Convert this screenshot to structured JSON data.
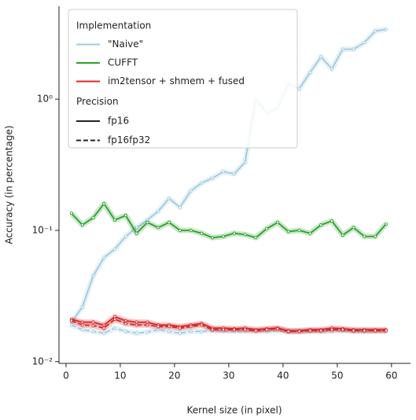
{
  "chart_data": {
    "type": "line",
    "xlabel": "Kernel size (in pixel)",
    "ylabel": "Accuracy (in percentage)",
    "x": [
      1,
      3,
      5,
      7,
      9,
      11,
      13,
      15,
      17,
      19,
      21,
      23,
      25,
      27,
      29,
      31,
      33,
      35,
      37,
      39,
      41,
      43,
      45,
      47,
      49,
      51,
      53,
      55,
      57,
      59
    ],
    "xlim": [
      -1.3,
      63.5
    ],
    "xticks": [
      0,
      10,
      20,
      30,
      40,
      50,
      60
    ],
    "ylim": [
      0.0097,
      5.1
    ],
    "yscale": "log",
    "yticks": [
      {
        "value": 0.01,
        "label": "10⁻²"
      },
      {
        "value": 0.1,
        "label": "10⁻¹"
      },
      {
        "value": 1,
        "label": "10⁰"
      }
    ],
    "legend": {
      "position": "upper left",
      "hue_title": "Implementation",
      "style_title": "Precision",
      "styles": [
        {
          "name": "fp16",
          "dash": "solid"
        },
        {
          "name": "fp16fp32",
          "dash": "dashed"
        }
      ]
    },
    "series": [
      {
        "name": "\"Naive\"",
        "color": "#9ecae1",
        "lines": [
          {
            "dash": "solid",
            "values": [
              0.02,
              0.026,
              0.045,
              0.062,
              0.072,
              0.09,
              0.105,
              0.12,
              0.14,
              0.175,
              0.15,
              0.2,
              0.23,
              0.25,
              0.28,
              0.27,
              0.33,
              1.0,
              0.78,
              0.85,
              1.3,
              1.2,
              1.6,
              2.1,
              1.7,
              2.4,
              2.4,
              2.7,
              3.3,
              3.4
            ]
          },
          {
            "dash": "dashed",
            "values": [
              0.019,
              0.0175,
              0.017,
              0.0165,
              0.018,
              0.017,
              0.0165,
              0.0168,
              0.0175,
              0.017,
              0.0165,
              0.017,
              0.017,
              0.0172,
              0.017,
              0.017,
              0.017,
              0.0172,
              0.017,
              0.0172,
              0.0168,
              0.017,
              0.017,
              0.017,
              0.017,
              0.0172,
              0.017,
              0.017,
              0.017,
              0.017
            ]
          }
        ]
      },
      {
        "name": "CUFFT",
        "color": "#2ca02c",
        "lines": [
          {
            "dash": "solid",
            "values": [
              0.135,
              0.11,
              0.125,
              0.16,
              0.12,
              0.13,
              0.095,
              0.115,
              0.105,
              0.115,
              0.1,
              0.1,
              0.095,
              0.088,
              0.09,
              0.095,
              0.093,
              0.088,
              0.103,
              0.115,
              0.098,
              0.1,
              0.095,
              0.11,
              0.118,
              0.092,
              0.105,
              0.09,
              0.09,
              0.112
            ]
          }
        ]
      },
      {
        "name": "im2tensor + shmem + fused",
        "color": "#d62728",
        "lines": [
          {
            "dash": "solid",
            "values": [
              0.021,
              0.02,
              0.02,
              0.019,
              0.022,
              0.0205,
              0.02,
              0.02,
              0.019,
              0.019,
              0.0185,
              0.019,
              0.0195,
              0.018,
              0.018,
              0.0178,
              0.018,
              0.0175,
              0.0178,
              0.018,
              0.0172,
              0.0172,
              0.0175,
              0.0175,
              0.018,
              0.0178,
              0.0175,
              0.0175,
              0.0175,
              0.0175
            ]
          },
          {
            "dash": "dashed",
            "values": [
              0.0205,
              0.019,
              0.0188,
              0.018,
              0.021,
              0.0195,
              0.019,
              0.019,
              0.0185,
              0.0185,
              0.018,
              0.0185,
              0.019,
              0.0175,
              0.0175,
              0.0175,
              0.0175,
              0.0172,
              0.0175,
              0.0178,
              0.017,
              0.017,
              0.0172,
              0.0172,
              0.0175,
              0.0175,
              0.0172,
              0.0172,
              0.0172,
              0.0172
            ]
          }
        ]
      }
    ]
  }
}
